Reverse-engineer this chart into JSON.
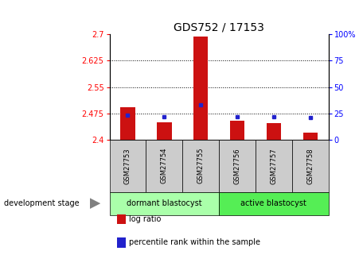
{
  "title": "GDS752 / 17153",
  "samples": [
    "GSM27753",
    "GSM27754",
    "GSM27755",
    "GSM27756",
    "GSM27757",
    "GSM27758"
  ],
  "log_ratios": [
    2.492,
    2.45,
    2.693,
    2.455,
    2.448,
    2.42
  ],
  "percentile_ranks": [
    23,
    22,
    33,
    22,
    22,
    21
  ],
  "ylim_left": [
    2.4,
    2.7
  ],
  "ylim_right": [
    0,
    100
  ],
  "yticks_left": [
    2.4,
    2.475,
    2.55,
    2.625,
    2.7
  ],
  "yticks_right": [
    0,
    25,
    50,
    75,
    100
  ],
  "hlines": [
    2.475,
    2.55,
    2.625
  ],
  "bar_color": "#cc1111",
  "dot_color": "#2222cc",
  "bar_baseline": 2.4,
  "groups": [
    {
      "label": "dormant blastocyst",
      "start": 0,
      "end": 3,
      "color": "#aaffaa"
    },
    {
      "label": "active blastocyst",
      "start": 3,
      "end": 6,
      "color": "#55ee55"
    }
  ],
  "group_label": "development stage",
  "legend_items": [
    {
      "label": "log ratio",
      "color": "#cc1111"
    },
    {
      "label": "percentile rank within the sample",
      "color": "#2222cc"
    }
  ],
  "gray_color": "#cccccc",
  "title_fontsize": 10,
  "tick_fontsize": 7,
  "sample_fontsize": 6,
  "group_fontsize": 7,
  "legend_fontsize": 7
}
